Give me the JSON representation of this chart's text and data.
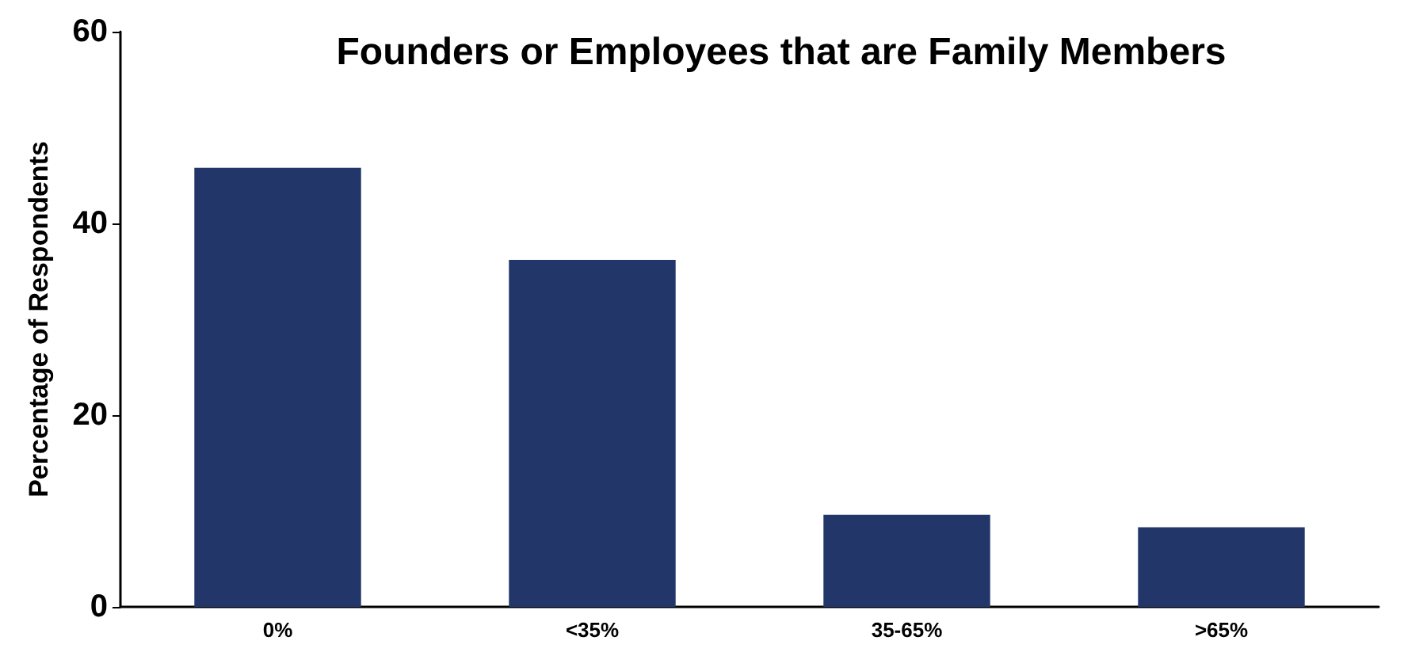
{
  "chart_data": {
    "type": "bar",
    "title": "Founders or Employees that are Family Members",
    "ylabel": "Percentage of Respondents",
    "categories": [
      "0%",
      "<35%",
      "35-65%",
      ">65%"
    ],
    "values": [
      45.8,
      36.2,
      9.6,
      8.3
    ],
    "color": "#22366a",
    "ylim": [
      0,
      60
    ],
    "yticks": [
      0,
      20,
      40,
      60
    ],
    "grid": false
  }
}
